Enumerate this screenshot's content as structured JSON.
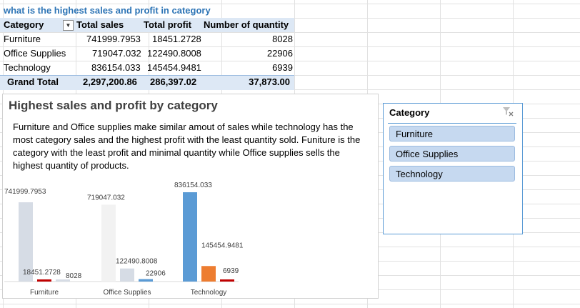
{
  "question": "what is the highest sales and profit in category",
  "pivot": {
    "headers": [
      "Category",
      "Total sales",
      "Total profit",
      "Number of quantity"
    ],
    "rows": [
      [
        "Furniture",
        "741999.7953",
        "18451.2728",
        "8028"
      ],
      [
        "Office Supplies",
        "719047.032",
        "122490.8008",
        "22906"
      ],
      [
        "Technology",
        "836154.033",
        "145454.9481",
        "6939"
      ]
    ],
    "total": [
      "Grand Total",
      "2,297,200.86",
      "286,397.02",
      "37,873.00"
    ]
  },
  "chart": {
    "title": "Highest sales and profit by category",
    "subtitle": "Furniture and Office supplies make similar amout of sales while technology has the most category sales and the highest profit with the least quantity sold. Funiture is the category with the least profit and minimal quantity while Office supplies sells the highest quantity of products."
  },
  "chart_data": {
    "type": "bar",
    "categories": [
      "Furniture",
      "Office Supplies",
      "Technology"
    ],
    "series": [
      {
        "values": [
          741999.7953,
          719047.032,
          836154.033
        ],
        "colors": [
          "#d6dce5",
          "#f2f2f2",
          "#5b9bd5"
        ]
      },
      {
        "values": [
          18451.2728,
          122490.8008,
          145454.9481
        ],
        "colors": [
          "#c00000",
          "#d6dce5",
          "#ed7d31"
        ]
      },
      {
        "values": [
          8028,
          22906,
          6939
        ],
        "colors": [
          "#d6dce5",
          "#5b9bd5",
          "#c00000"
        ]
      }
    ],
    "data_labels": [
      [
        "741999.7953",
        "18451.2728",
        "8028"
      ],
      [
        "719047.032",
        "122490.8008",
        "22906"
      ],
      [
        "836154.033",
        "145454.9481",
        "6939"
      ]
    ],
    "ylim": [
      0,
      836154.033
    ],
    "legend": "none",
    "grid": false
  },
  "slicer": {
    "title": "Category",
    "items": [
      "Furniture",
      "Office Supplies",
      "Technology"
    ],
    "accent": "#5b9bd5",
    "clear_icon": "clear-filter-icon"
  }
}
